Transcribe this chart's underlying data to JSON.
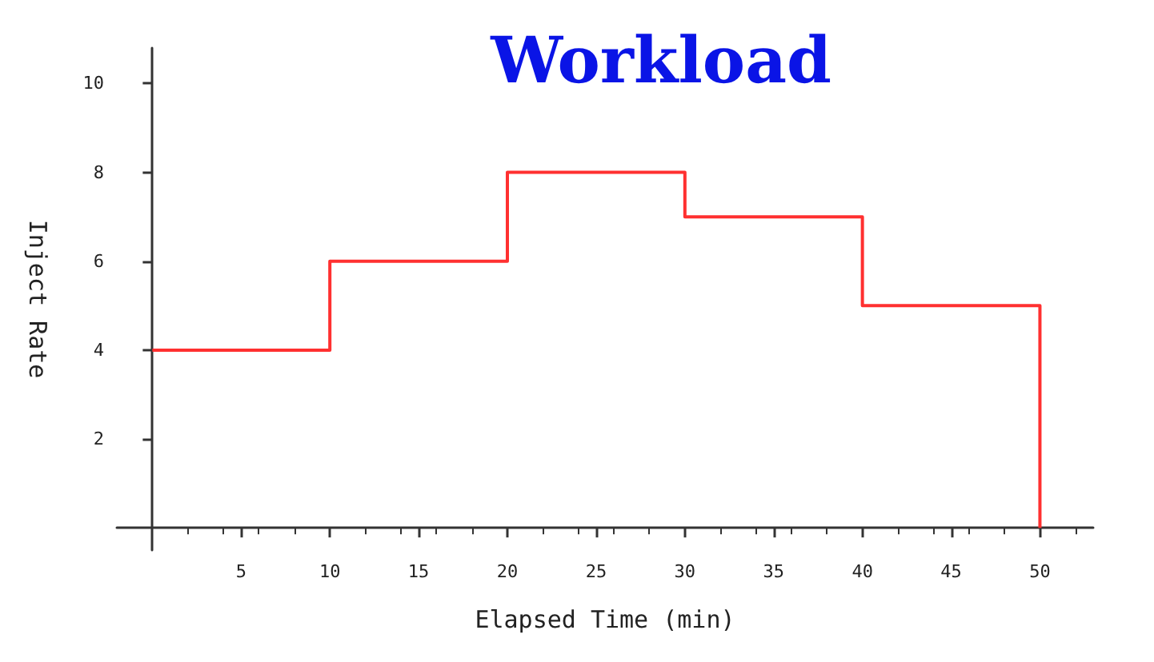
{
  "chart_data": {
    "type": "step",
    "title": "Workload",
    "xlabel": "Elapsed Time (min)",
    "ylabel": "Inject Rate",
    "x": [
      0,
      10,
      20,
      30,
      40,
      50
    ],
    "series": [
      {
        "color": "#ff3030",
        "values": [
          4,
          6,
          8,
          7,
          5,
          0
        ]
      }
    ],
    "xlim": [
      -2,
      53
    ],
    "xticks": [
      5,
      10,
      15,
      20,
      25,
      30,
      35,
      40,
      45,
      50
    ],
    "ylim": [
      -0.5,
      10.8
    ],
    "yticks": [
      2,
      4,
      6,
      8,
      10
    ],
    "grid": false,
    "marker": "none",
    "line_style": "solid"
  }
}
